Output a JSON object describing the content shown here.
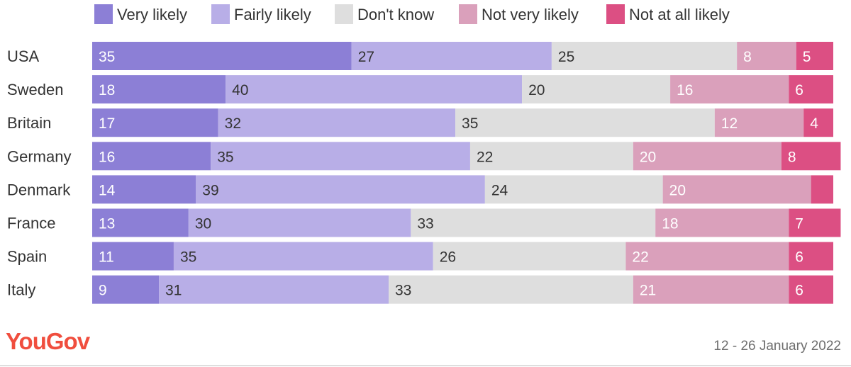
{
  "brand": {
    "logo": "YouGov",
    "logo_color": "#f04e3e"
  },
  "footer": {
    "date": "12 - 26 January 2022"
  },
  "chart_data": {
    "type": "bar",
    "orientation": "horizontal",
    "stacked": true,
    "units": "percent",
    "xlim": [
      0,
      100
    ],
    "legend_position": "top",
    "grid": false,
    "categories": [
      "USA",
      "Sweden",
      "Britain",
      "Germany",
      "Denmark",
      "France",
      "Spain",
      "Italy"
    ],
    "series": [
      {
        "name": "Very likely",
        "color": "#8c7fd6",
        "label_color": "#ffffff",
        "values": [
          35,
          18,
          17,
          16,
          14,
          13,
          11,
          9
        ]
      },
      {
        "name": "Fairly likely",
        "color": "#b8aee7",
        "label_color": "#333333",
        "values": [
          27,
          40,
          32,
          35,
          39,
          30,
          35,
          31
        ]
      },
      {
        "name": "Don't know",
        "color": "#dedede",
        "label_color": "#333333",
        "values": [
          25,
          20,
          35,
          22,
          24,
          33,
          26,
          33
        ]
      },
      {
        "name": "Not very likely",
        "color": "#daa0bb",
        "label_color": "#ffffff",
        "values": [
          8,
          16,
          12,
          20,
          20,
          18,
          22,
          21
        ]
      },
      {
        "name": "Not at all likely",
        "color": "#dc4f83",
        "label_color": "#ffffff",
        "values": [
          5,
          6,
          4,
          8,
          3,
          7,
          6,
          6
        ]
      }
    ],
    "value_labels": [
      [
        "35",
        "27",
        "25",
        "8",
        "5"
      ],
      [
        "18",
        "40",
        "20",
        "16",
        "6"
      ],
      [
        "17",
        "32",
        "35",
        "12",
        "4"
      ],
      [
        "16",
        "35",
        "22",
        "20",
        "8"
      ],
      [
        "14",
        "39",
        "24",
        "20",
        ""
      ],
      [
        "13",
        "30",
        "33",
        "18",
        "7"
      ],
      [
        "11",
        "35",
        "26",
        "22",
        "6"
      ],
      [
        "9",
        "31",
        "33",
        "21",
        "6"
      ]
    ]
  }
}
